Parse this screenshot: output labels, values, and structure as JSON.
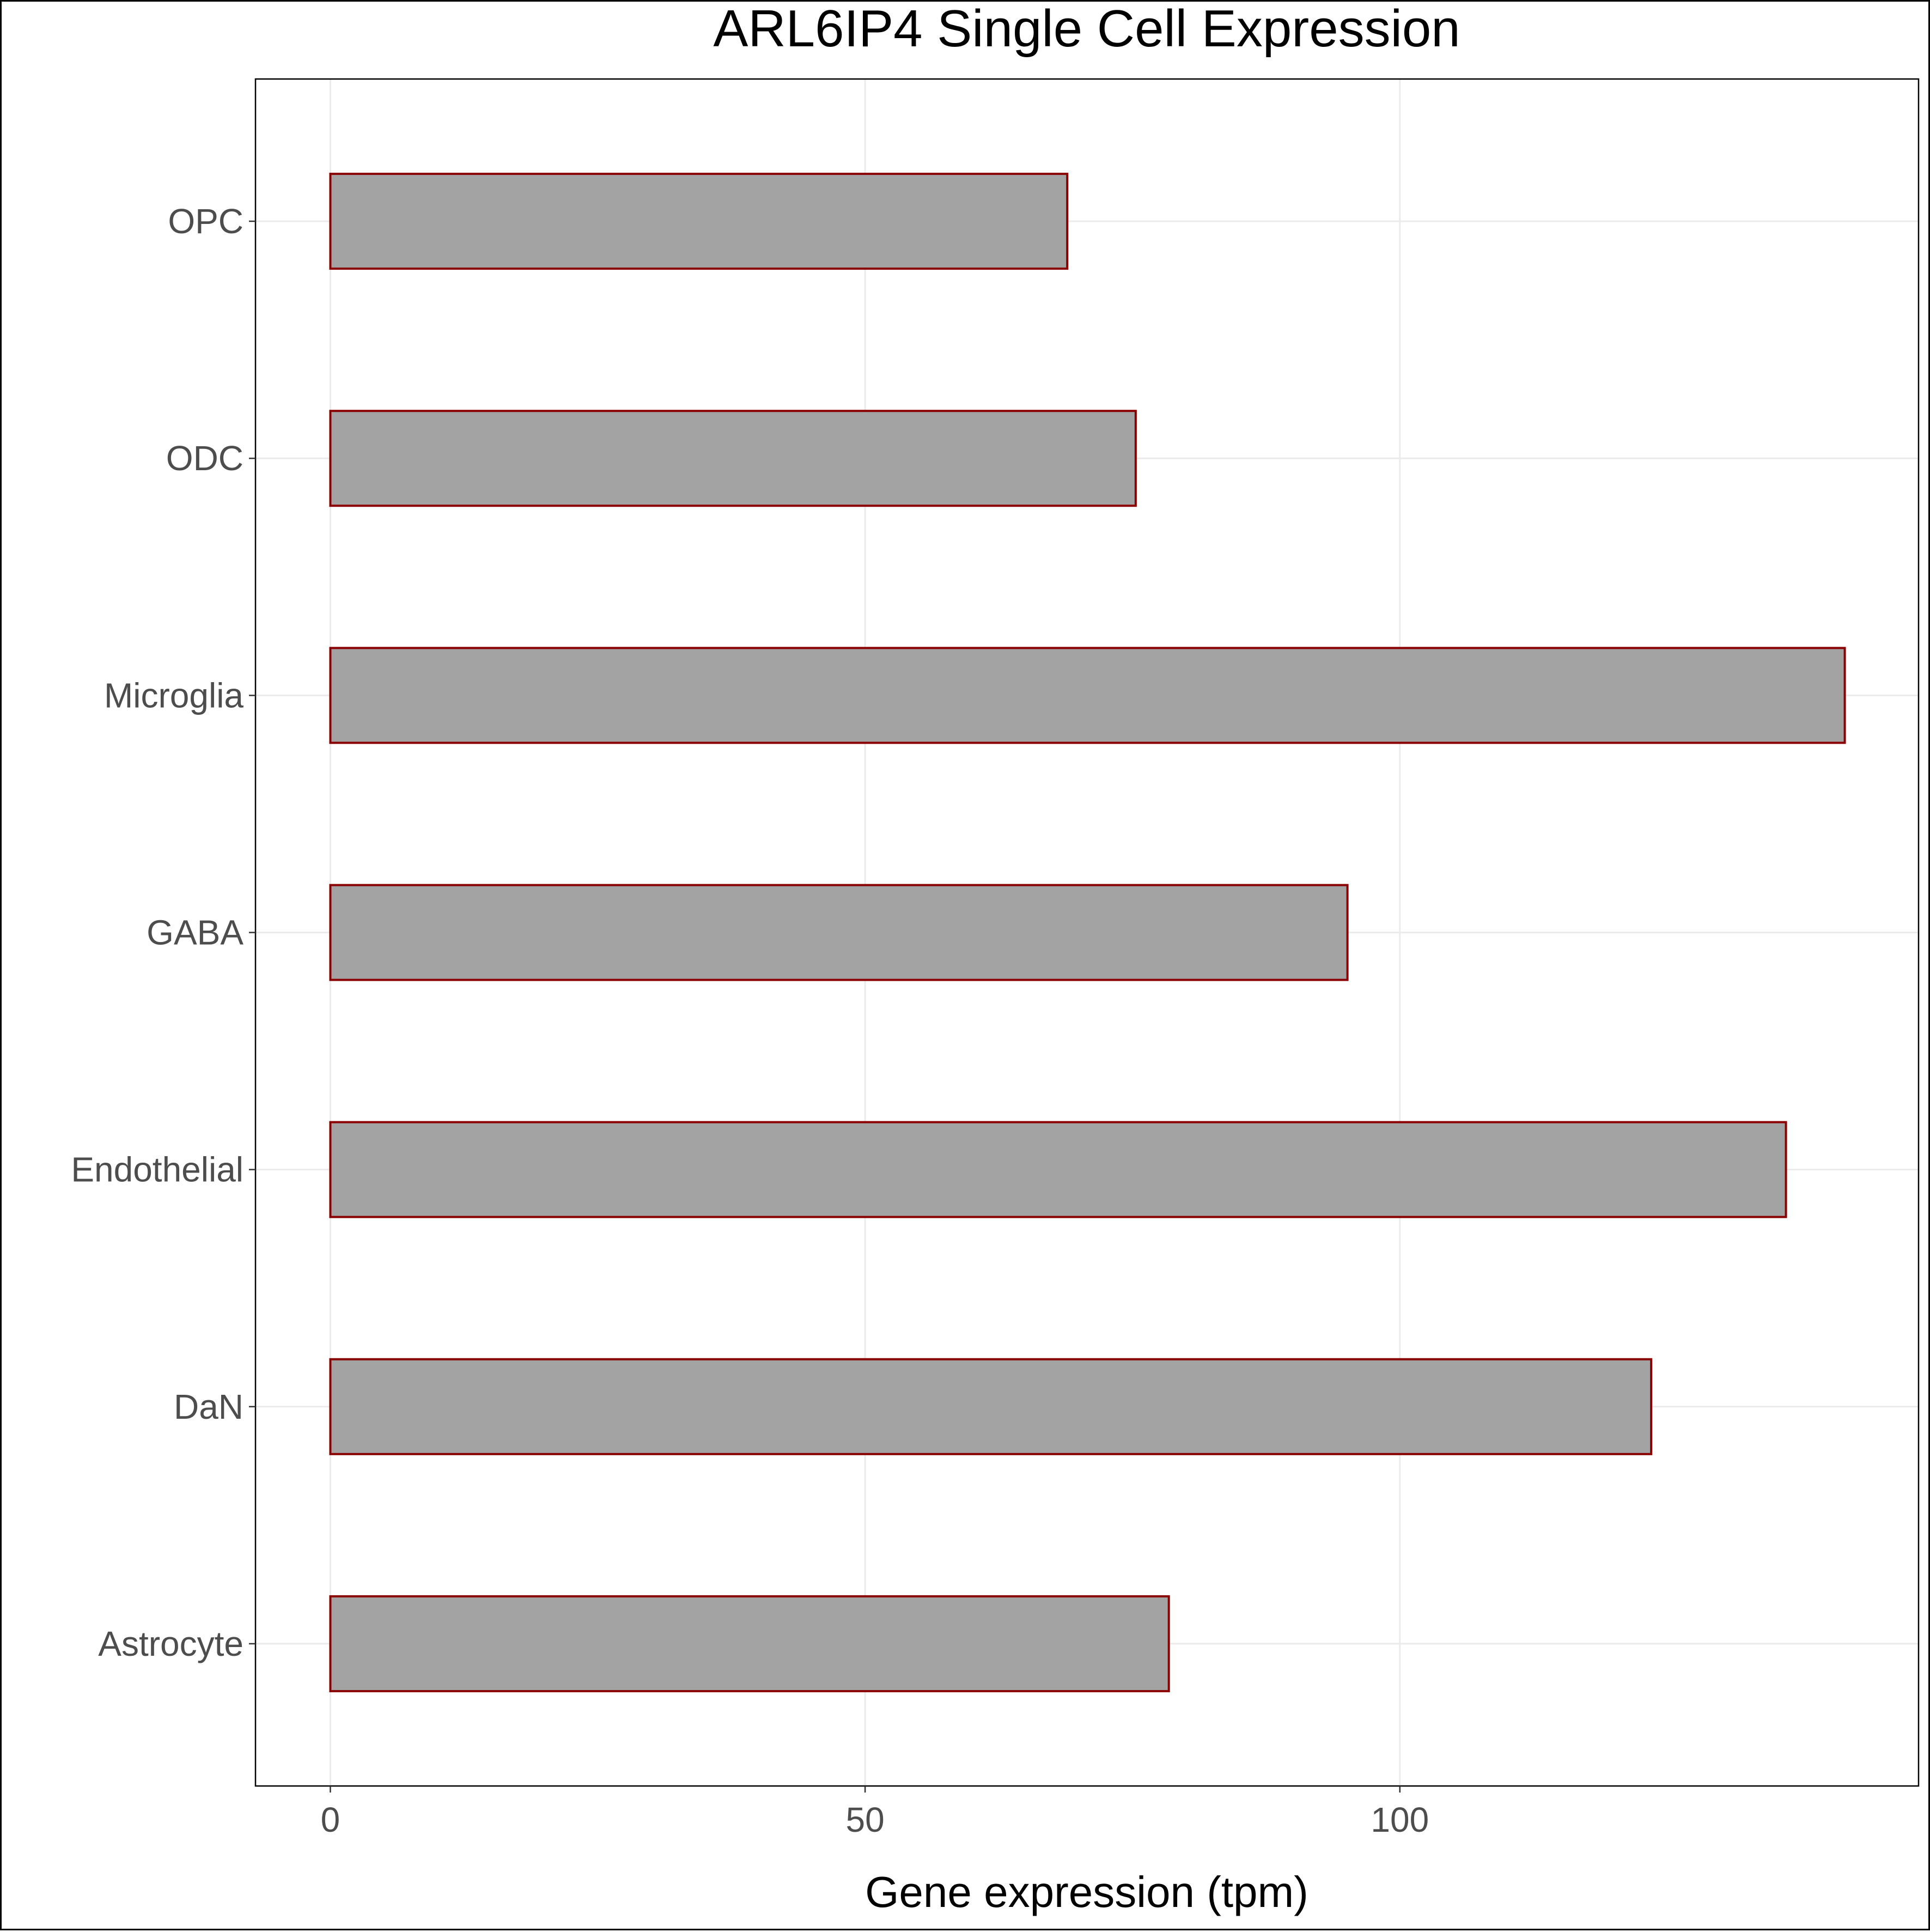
{
  "chart_data": {
    "type": "bar",
    "orientation": "horizontal",
    "title": "ARL6IP4 Single Cell Expression",
    "xlabel": "Gene expression (tpm)",
    "ylabel": "",
    "categories": [
      "Astrocyte",
      "DaN",
      "Endothelial",
      "GABA",
      "Microglia",
      "ODC",
      "OPC"
    ],
    "values": [
      78.4,
      123.5,
      136.1,
      95.1,
      141.6,
      75.3,
      68.9
    ],
    "xlim": [
      -7,
      148.5
    ],
    "xticks": [
      0,
      50,
      100
    ],
    "xtick_labels": [
      "0",
      "50",
      "100"
    ],
    "grid": true,
    "legend": "none",
    "colors": {
      "bar_fill": "#a3a3a3",
      "bar_stroke": "#8b0000",
      "grid": "#ebebeb",
      "axis_text": "#4d4d4d",
      "title_text": "#000000",
      "panel_border": "#000000"
    }
  }
}
